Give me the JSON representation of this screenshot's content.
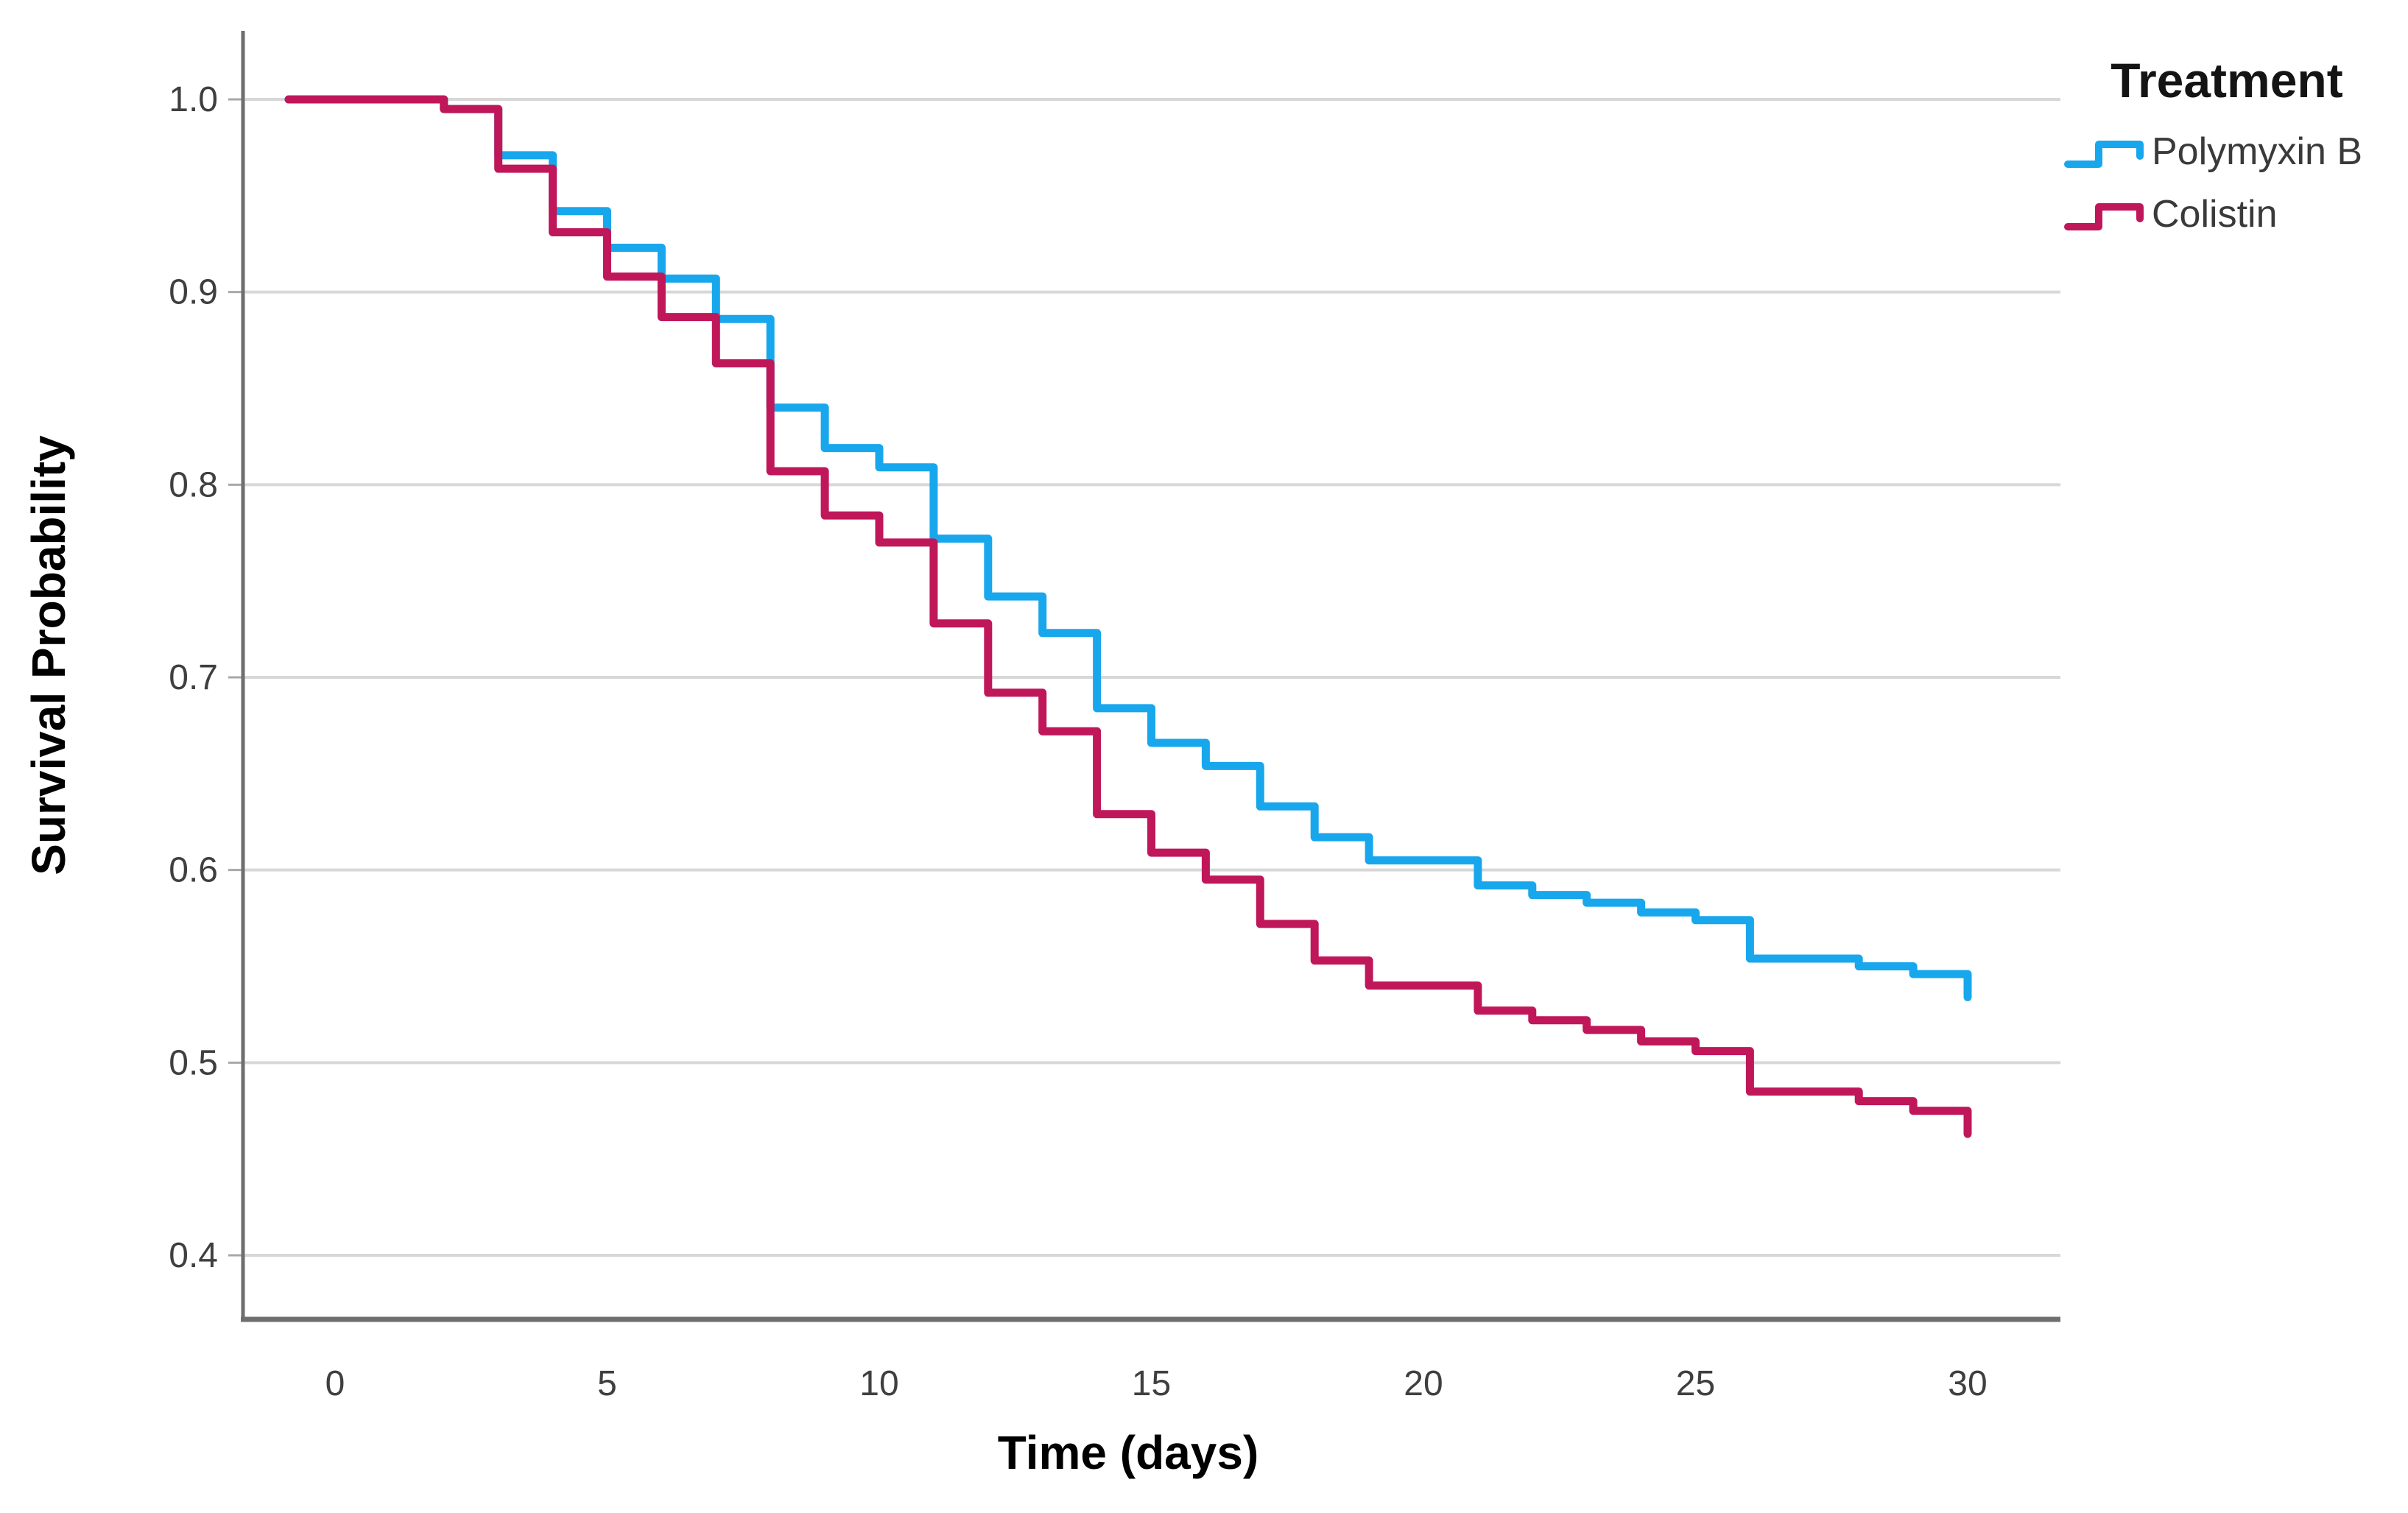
{
  "figure": {
    "background": "#ffffff"
  },
  "legend": {
    "title": "Treatment",
    "position": "top-right-outside",
    "entries": [
      {
        "label": "Polymyxin B",
        "color": "#18a7ec"
      },
      {
        "label": "Colistin",
        "color": "#c0175a"
      }
    ]
  },
  "colors": {
    "gridline": "#d8d8d8",
    "axis_line": "#6e6e6e",
    "tick_mark": "#a8a8a8",
    "tick_label": "#3f3f3f",
    "polymyxin_b": "#18a7ec",
    "colistin": "#c0175a"
  },
  "chart_data": {
    "type": "line",
    "subtype": "kaplan-meier-step",
    "title": "",
    "xlabel": "Time (days)",
    "ylabel": "Survival Probability",
    "xlim": [
      0,
      30
    ],
    "ylim": [
      0.36,
      1.02
    ],
    "xticks": [
      0,
      5,
      10,
      15,
      20,
      25,
      30
    ],
    "yticks": [
      1.0,
      0.9,
      0.8,
      0.7,
      0.6,
      0.5,
      0.4
    ],
    "grid": "horizontal",
    "legend_position": "top-right-outside",
    "series": [
      {
        "name": "Polymyxin B",
        "color": "#18a7ec",
        "points": [
          [
            0,
            1.0
          ],
          [
            2,
            0.995
          ],
          [
            3,
            0.971
          ],
          [
            4,
            0.942
          ],
          [
            5,
            0.923
          ],
          [
            6,
            0.907
          ],
          [
            7,
            0.886
          ],
          [
            8,
            0.84
          ],
          [
            9,
            0.819
          ],
          [
            10,
            0.809
          ],
          [
            11,
            0.772
          ],
          [
            12,
            0.742
          ],
          [
            13,
            0.723
          ],
          [
            14,
            0.684
          ],
          [
            15,
            0.666
          ],
          [
            16,
            0.654
          ],
          [
            17,
            0.633
          ],
          [
            18,
            0.617
          ],
          [
            19,
            0.605
          ],
          [
            21,
            0.592
          ],
          [
            22,
            0.587
          ],
          [
            23,
            0.583
          ],
          [
            24,
            0.578
          ],
          [
            25,
            0.574
          ],
          [
            26,
            0.554
          ],
          [
            28,
            0.55
          ],
          [
            29,
            0.546
          ],
          [
            30,
            0.534
          ]
        ]
      },
      {
        "name": "Colistin",
        "color": "#c0175a",
        "points": [
          [
            0,
            1.0
          ],
          [
            2,
            0.995
          ],
          [
            3,
            0.964
          ],
          [
            4,
            0.931
          ],
          [
            5,
            0.908
          ],
          [
            6,
            0.887
          ],
          [
            7,
            0.863
          ],
          [
            8,
            0.807
          ],
          [
            9,
            0.784
          ],
          [
            10,
            0.77
          ],
          [
            11,
            0.728
          ],
          [
            12,
            0.692
          ],
          [
            13,
            0.672
          ],
          [
            14,
            0.629
          ],
          [
            15,
            0.609
          ],
          [
            16,
            0.595
          ],
          [
            17,
            0.572
          ],
          [
            18,
            0.553
          ],
          [
            19,
            0.54
          ],
          [
            21,
            0.527
          ],
          [
            22,
            0.522
          ],
          [
            23,
            0.517
          ],
          [
            24,
            0.511
          ],
          [
            25,
            0.506
          ],
          [
            26,
            0.485
          ],
          [
            28,
            0.48
          ],
          [
            29,
            0.475
          ],
          [
            30,
            0.463
          ]
        ]
      }
    ]
  }
}
